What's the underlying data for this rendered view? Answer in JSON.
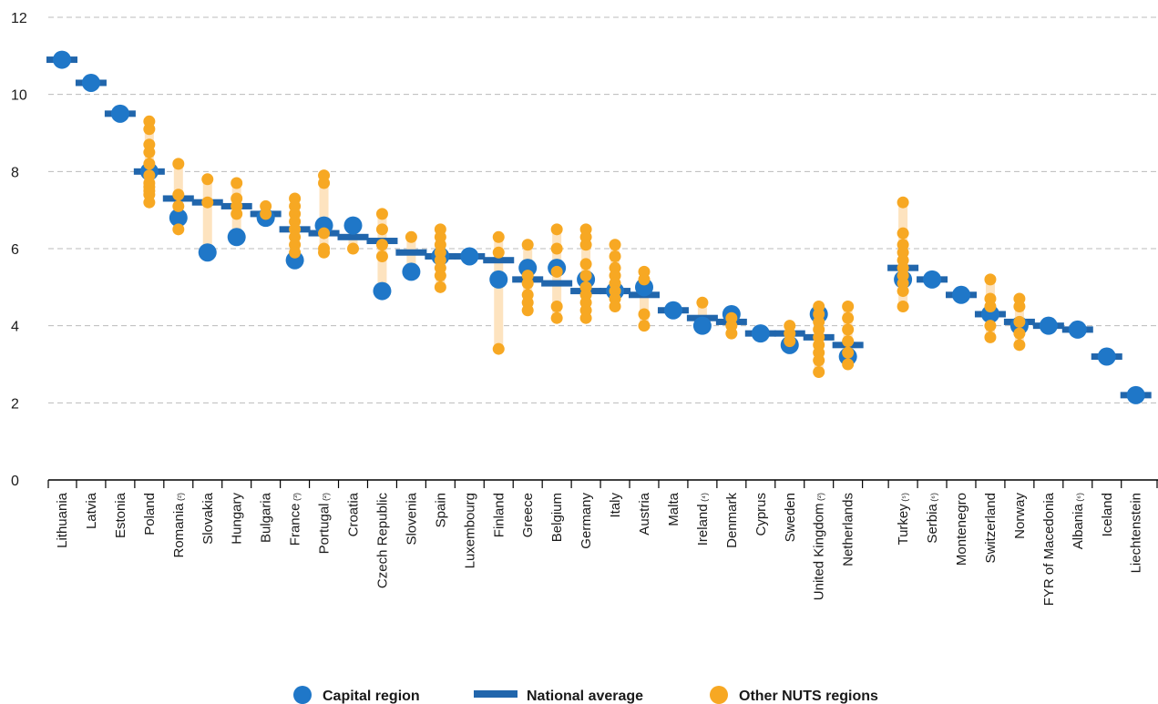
{
  "chart_data": {
    "type": "scatter",
    "title": "",
    "xlabel": "",
    "ylabel": "",
    "ylim": [
      0,
      12
    ],
    "yticks": [
      0,
      2,
      4,
      6,
      8,
      10,
      12
    ],
    "grid": "horizontal dashed",
    "legend": {
      "placement": "bottom",
      "entries": [
        {
          "key": "capital",
          "label": "Capital region"
        },
        {
          "key": "national",
          "label": "National average"
        },
        {
          "key": "other",
          "label": "Other NUTS regions"
        }
      ]
    },
    "colors": {
      "capital": "#1f77c8",
      "national": "#2166ac",
      "other": "#f7a823",
      "range": "#fde3bf",
      "grid": "#bbbbbb",
      "axis": "#000000"
    },
    "categories": [
      {
        "name": "Lithuania",
        "note": "",
        "group": 1,
        "capital": 10.9,
        "national": 10.9,
        "other": []
      },
      {
        "name": "Latvia",
        "note": "",
        "group": 1,
        "capital": 10.3,
        "national": 10.3,
        "other": []
      },
      {
        "name": "Estonia",
        "note": "",
        "group": 1,
        "capital": 9.5,
        "national": 9.5,
        "other": []
      },
      {
        "name": "Poland",
        "note": "",
        "group": 1,
        "capital": 8.0,
        "national": 8.0,
        "other": [
          9.3,
          9.1,
          8.7,
          8.5,
          8.2,
          7.9,
          7.7,
          7.6,
          7.5,
          7.4,
          7.2
        ]
      },
      {
        "name": "Romania",
        "note": "(²)",
        "group": 1,
        "capital": 6.8,
        "national": 7.3,
        "other": [
          8.2,
          7.4,
          7.1,
          6.5
        ]
      },
      {
        "name": "Slovakia",
        "note": "",
        "group": 1,
        "capital": 5.9,
        "national": 7.2,
        "other": [
          7.8,
          7.2
        ]
      },
      {
        "name": "Hungary",
        "note": "",
        "group": 1,
        "capital": 6.3,
        "national": 7.1,
        "other": [
          7.7,
          7.3,
          7.1,
          6.9
        ]
      },
      {
        "name": "Bulgaria",
        "note": "",
        "group": 1,
        "capital": 6.8,
        "national": 6.9,
        "other": [
          7.1,
          6.9
        ]
      },
      {
        "name": "France",
        "note": "(³)",
        "group": 1,
        "capital": 5.7,
        "national": 6.5,
        "other": [
          7.3,
          7.1,
          6.9,
          6.7,
          6.5,
          6.3,
          6.1,
          5.9
        ]
      },
      {
        "name": "Portugal",
        "note": "(²)",
        "group": 1,
        "capital": 6.6,
        "national": 6.4,
        "other": [
          7.9,
          7.7,
          6.4,
          6.0,
          5.9
        ]
      },
      {
        "name": "Croatia",
        "note": "",
        "group": 1,
        "capital": 6.6,
        "national": 6.3,
        "other": [
          6.0
        ]
      },
      {
        "name": "Czech Republic",
        "note": "",
        "group": 1,
        "capital": 4.9,
        "national": 6.2,
        "other": [
          6.9,
          6.5,
          6.1,
          5.8
        ]
      },
      {
        "name": "Slovenia",
        "note": "",
        "group": 1,
        "capital": 5.4,
        "national": 5.9,
        "other": [
          6.3
        ]
      },
      {
        "name": "Spain",
        "note": "",
        "group": 1,
        "capital": 5.8,
        "national": 5.8,
        "other": [
          6.5,
          6.3,
          6.1,
          5.9,
          5.7,
          5.5,
          5.3,
          5.0
        ]
      },
      {
        "name": "Luxembourg",
        "note": "",
        "group": 1,
        "capital": 5.8,
        "national": 5.8,
        "other": []
      },
      {
        "name": "Finland",
        "note": "",
        "group": 1,
        "capital": 5.2,
        "national": 5.7,
        "other": [
          6.3,
          5.9,
          3.4
        ]
      },
      {
        "name": "Greece",
        "note": "",
        "group": 1,
        "capital": 5.5,
        "national": 5.2,
        "other": [
          6.1,
          5.3,
          5.1,
          4.8,
          4.6,
          4.4
        ]
      },
      {
        "name": "Belgium",
        "note": "",
        "group": 1,
        "capital": 5.5,
        "national": 5.1,
        "other": [
          6.5,
          6.0,
          5.4,
          4.5,
          4.2
        ]
      },
      {
        "name": "Germany",
        "note": "",
        "group": 1,
        "capital": 5.2,
        "national": 4.9,
        "other": [
          6.5,
          6.3,
          6.1,
          5.6,
          5.3,
          5.0,
          4.8,
          4.6,
          4.4,
          4.2
        ]
      },
      {
        "name": "Italy",
        "note": "",
        "group": 1,
        "capital": 4.9,
        "national": 4.9,
        "other": [
          6.1,
          5.8,
          5.5,
          5.3,
          5.1,
          4.9,
          4.7,
          4.5
        ]
      },
      {
        "name": "Austria",
        "note": "",
        "group": 1,
        "capital": 5.0,
        "national": 4.8,
        "other": [
          5.4,
          5.2,
          4.3,
          4.0
        ]
      },
      {
        "name": "Malta",
        "note": "",
        "group": 1,
        "capital": 4.4,
        "national": 4.4,
        "other": []
      },
      {
        "name": "Ireland",
        "note": "(⁴)",
        "group": 1,
        "capital": 4.0,
        "national": 4.2,
        "other": [
          4.6
        ]
      },
      {
        "name": "Denmark",
        "note": "",
        "group": 1,
        "capital": 4.3,
        "national": 4.1,
        "other": [
          4.2,
          4.0,
          3.8
        ]
      },
      {
        "name": "Cyprus",
        "note": "",
        "group": 1,
        "capital": 3.8,
        "national": 3.8,
        "other": []
      },
      {
        "name": "Sweden",
        "note": "",
        "group": 1,
        "capital": 3.5,
        "national": 3.8,
        "other": [
          4.0,
          3.8,
          3.6
        ]
      },
      {
        "name": "United Kingdom",
        "note": "(²)",
        "group": 1,
        "capital": 4.3,
        "national": 3.7,
        "other": [
          4.5,
          4.3,
          4.1,
          3.9,
          3.7,
          3.5,
          3.3,
          3.1,
          2.8
        ]
      },
      {
        "name": "Netherlands",
        "note": "",
        "group": 1,
        "capital": 3.2,
        "national": 3.5,
        "other": [
          4.5,
          4.2,
          3.9,
          3.6,
          3.3,
          3.0
        ]
      },
      {
        "name": "Turkey",
        "note": "(⁵)",
        "group": 2,
        "capital": 5.2,
        "national": 5.5,
        "other": [
          7.2,
          6.4,
          6.1,
          5.9,
          5.7,
          5.5,
          5.3,
          5.1,
          4.9,
          4.5
        ]
      },
      {
        "name": "Serbia",
        "note": "(⁶)",
        "group": 2,
        "capital": 5.2,
        "national": 5.2,
        "other": []
      },
      {
        "name": "Montenegro",
        "note": "",
        "group": 2,
        "capital": 4.8,
        "national": 4.8,
        "other": []
      },
      {
        "name": "Switzerland",
        "note": "",
        "group": 2,
        "capital": 4.3,
        "national": 4.3,
        "other": [
          5.2,
          4.7,
          4.5,
          4.0,
          3.7
        ]
      },
      {
        "name": "Norway",
        "note": "",
        "group": 2,
        "capital": 4.0,
        "national": 4.1,
        "other": [
          4.7,
          4.5,
          4.1,
          3.8,
          3.5
        ]
      },
      {
        "name": "FYR of Macedonia",
        "note": "",
        "group": 2,
        "capital": 4.0,
        "national": 4.0,
        "other": []
      },
      {
        "name": "Albania",
        "note": "(⁶)",
        "group": 2,
        "capital": 3.9,
        "national": 3.9,
        "other": []
      },
      {
        "name": "Iceland",
        "note": "",
        "group": 2,
        "capital": 3.2,
        "national": 3.2,
        "other": []
      },
      {
        "name": "Liechtenstein",
        "note": "",
        "group": 2,
        "capital": 2.2,
        "national": 2.2,
        "other": []
      }
    ]
  }
}
